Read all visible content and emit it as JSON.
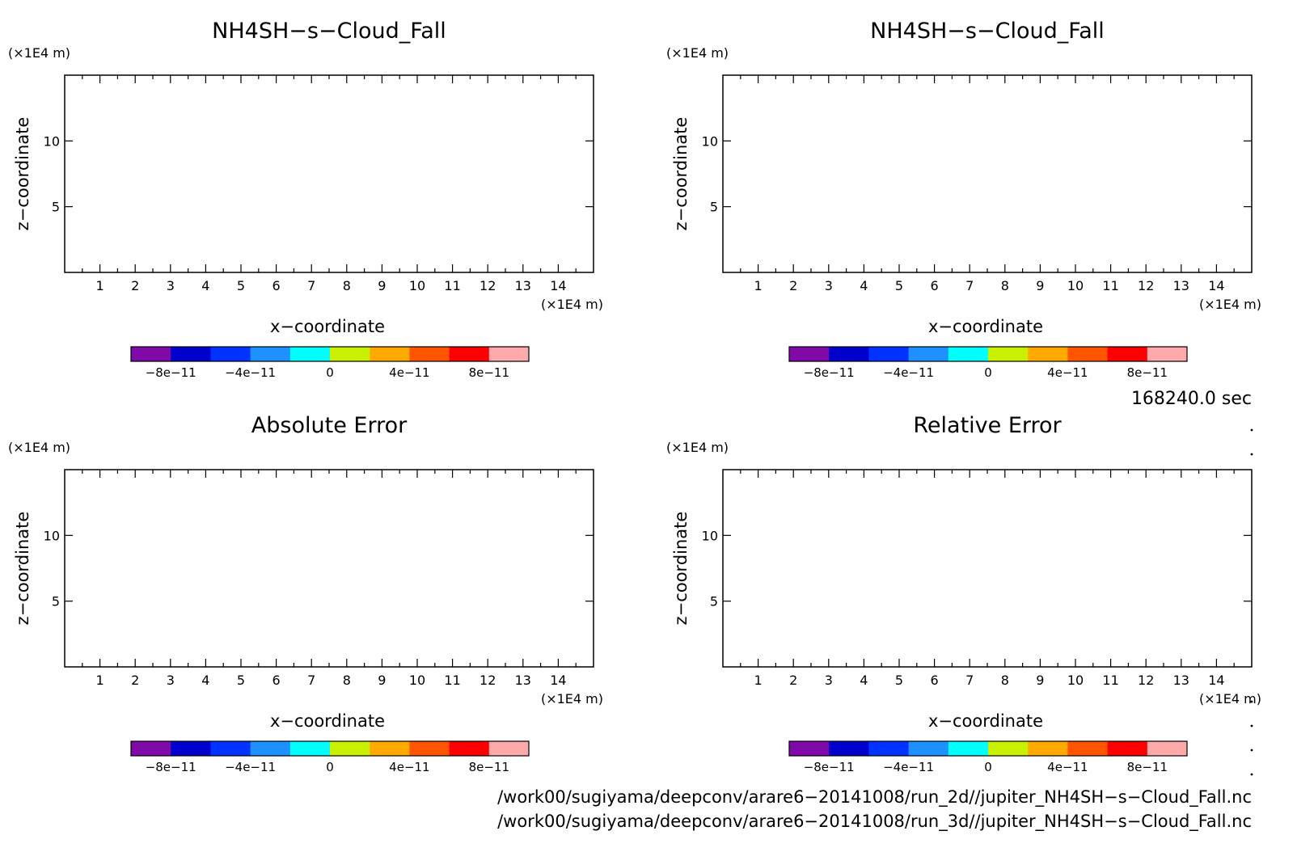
{
  "chart_data": [
    {
      "type": "heatmap",
      "title": "NH4SH−s−Cloud_Fall",
      "xlabel": "x−coordinate",
      "ylabel": "z−coordinate",
      "x_unit": "(×1E4 m)",
      "y_unit": "(×1E4 m)",
      "xlim": [
        0,
        15
      ],
      "ylim": [
        0,
        15
      ],
      "x_ticks": [
        1,
        2,
        3,
        4,
        5,
        6,
        7,
        8,
        9,
        10,
        11,
        12,
        13,
        14
      ],
      "x_tick_labels": [
        "1",
        "2",
        "3",
        "4",
        "5",
        "6",
        "7",
        "8",
        "9",
        "10",
        "11",
        "12",
        "13",
        "14"
      ],
      "y_ticks": [
        5,
        10
      ],
      "y_tick_labels": [
        "5",
        "10"
      ],
      "colorbar": {
        "levels": [
          -1e-10,
          -8e-11,
          -6e-11,
          -4e-11,
          -2e-11,
          0,
          2e-11,
          4e-11,
          6e-11,
          8e-11,
          1e-10
        ],
        "colors": [
          "#7f0aa8",
          "#0000cd",
          "#0033ff",
          "#1e90ff",
          "#00ffff",
          "#c8f000",
          "#ffaa00",
          "#ff5500",
          "#ff0000",
          "#ffaaaa"
        ],
        "labels": [
          "−8e−11",
          "−4e−11",
          "0",
          "4e−11",
          "8e−11"
        ],
        "label_values": [
          -8e-11,
          -4e-11,
          0,
          4e-11,
          8e-11
        ]
      }
    },
    {
      "type": "heatmap",
      "title": "NH4SH−s−Cloud_Fall",
      "xlabel": "x−coordinate",
      "ylabel": "z−coordinate",
      "x_unit": "(×1E4 m)",
      "y_unit": "(×1E4 m)",
      "xlim": [
        0,
        15
      ],
      "ylim": [
        0,
        15
      ],
      "x_ticks": [
        1,
        2,
        3,
        4,
        5,
        6,
        7,
        8,
        9,
        10,
        11,
        12,
        13,
        14
      ],
      "x_tick_labels": [
        "1",
        "2",
        "3",
        "4",
        "5",
        "6",
        "7",
        "8",
        "9",
        "10",
        "11",
        "12",
        "13",
        "14"
      ],
      "y_ticks": [
        5,
        10
      ],
      "y_tick_labels": [
        "5",
        "10"
      ],
      "colorbar": {
        "levels": [
          -1e-10,
          -8e-11,
          -6e-11,
          -4e-11,
          -2e-11,
          0,
          2e-11,
          4e-11,
          6e-11,
          8e-11,
          1e-10
        ],
        "colors": [
          "#7f0aa8",
          "#0000cd",
          "#0033ff",
          "#1e90ff",
          "#00ffff",
          "#c8f000",
          "#ffaa00",
          "#ff5500",
          "#ff0000",
          "#ffaaaa"
        ],
        "labels": [
          "−8e−11",
          "−4e−11",
          "0",
          "4e−11",
          "8e−11"
        ],
        "label_values": [
          -8e-11,
          -4e-11,
          0,
          4e-11,
          8e-11
        ]
      }
    },
    {
      "type": "heatmap",
      "title": "Absolute Error",
      "xlabel": "x−coordinate",
      "ylabel": "z−coordinate",
      "x_unit": "(×1E4 m)",
      "y_unit": "(×1E4 m)",
      "xlim": [
        0,
        15
      ],
      "ylim": [
        0,
        15
      ],
      "x_ticks": [
        1,
        2,
        3,
        4,
        5,
        6,
        7,
        8,
        9,
        10,
        11,
        12,
        13,
        14
      ],
      "x_tick_labels": [
        "1",
        "2",
        "3",
        "4",
        "5",
        "6",
        "7",
        "8",
        "9",
        "10",
        "11",
        "12",
        "13",
        "14"
      ],
      "y_ticks": [
        5,
        10
      ],
      "y_tick_labels": [
        "5",
        "10"
      ],
      "colorbar": {
        "levels": [
          -1e-10,
          -8e-11,
          -6e-11,
          -4e-11,
          -2e-11,
          0,
          2e-11,
          4e-11,
          6e-11,
          8e-11,
          1e-10
        ],
        "colors": [
          "#7f0aa8",
          "#0000cd",
          "#0033ff",
          "#1e90ff",
          "#00ffff",
          "#c8f000",
          "#ffaa00",
          "#ff5500",
          "#ff0000",
          "#ffaaaa"
        ],
        "labels": [
          "−8e−11",
          "−4e−11",
          "0",
          "4e−11",
          "8e−11"
        ],
        "label_values": [
          -8e-11,
          -4e-11,
          0,
          4e-11,
          8e-11
        ]
      }
    },
    {
      "type": "heatmap",
      "title": "Relative Error",
      "xlabel": "x−coordinate",
      "ylabel": "z−coordinate",
      "x_unit": "(×1E4 m)",
      "y_unit": "(×1E4 m)",
      "xlim": [
        0,
        15
      ],
      "ylim": [
        0,
        15
      ],
      "x_ticks": [
        1,
        2,
        3,
        4,
        5,
        6,
        7,
        8,
        9,
        10,
        11,
        12,
        13,
        14
      ],
      "x_tick_labels": [
        "1",
        "2",
        "3",
        "4",
        "5",
        "6",
        "7",
        "8",
        "9",
        "10",
        "11",
        "12",
        "13",
        "14"
      ],
      "y_ticks": [
        5,
        10
      ],
      "y_tick_labels": [
        "5",
        "10"
      ],
      "colorbar": {
        "levels": [
          -1e-10,
          -8e-11,
          -6e-11,
          -4e-11,
          -2e-11,
          0,
          2e-11,
          4e-11,
          6e-11,
          8e-11,
          1e-10
        ],
        "colors": [
          "#7f0aa8",
          "#0000cd",
          "#0033ff",
          "#1e90ff",
          "#00ffff",
          "#c8f000",
          "#ffaa00",
          "#ff5500",
          "#ff0000",
          "#ffaaaa"
        ],
        "labels": [
          "−8e−11",
          "−4e−11",
          "0",
          "4e−11",
          "8e−11"
        ],
        "label_values": [
          -8e-11,
          -4e-11,
          0,
          4e-11,
          8e-11
        ]
      }
    }
  ],
  "time_label": "168240.0 sec",
  "file_paths": [
    "/work00/sugiyama/deepconv/arare6−20141008/run_2d//jupiter_NH4SH−s−Cloud_Fall.nc",
    "/work00/sugiyama/deepconv/arare6−20141008/run_3d//jupiter_NH4SH−s−Cloud_Fall.nc"
  ]
}
